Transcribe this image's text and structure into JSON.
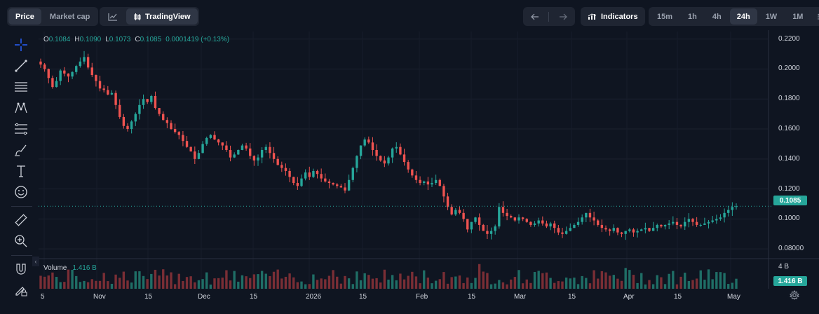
{
  "toolbar": {
    "view_tabs": [
      {
        "label": "Price",
        "active": true
      },
      {
        "label": "Market cap",
        "active": false
      }
    ],
    "tradingview_label": "TradingView",
    "indicators_label": "Indicators",
    "intervals": [
      {
        "label": "15m",
        "active": false
      },
      {
        "label": "1h",
        "active": false
      },
      {
        "label": "4h",
        "active": false
      },
      {
        "label": "24h",
        "active": true
      },
      {
        "label": "1W",
        "active": false
      },
      {
        "label": "1M",
        "active": false
      }
    ]
  },
  "ohlc": {
    "o_key": "O",
    "o": "0.1084",
    "h_key": "H",
    "h": "0.1090",
    "l_key": "L",
    "l": "0.1073",
    "c_key": "C",
    "c": "0.1085",
    "change": "0.0001419 (+0.13%)"
  },
  "last_price": "0.1085",
  "volume": {
    "label": "Volume",
    "value": "1.416 B",
    "tag": "1.416 B",
    "axis_label": "4 B"
  },
  "colors": {
    "up": "#26a69a",
    "down": "#ef5350",
    "vol_up": "#1f6e66",
    "vol_down": "#7a2e35"
  },
  "chart_data": {
    "type": "candlestick",
    "y_axis_ticks": [
      "0.2200",
      "0.2000",
      "0.1800",
      "0.1600",
      "0.1400",
      "0.1200",
      "0.1000",
      "0.08000"
    ],
    "x_axis_ticks": [
      "5",
      "Nov",
      "15",
      "Dec",
      "15",
      "2026",
      "15",
      "Feb",
      "15",
      "Mar",
      "15",
      "Apr",
      "15",
      "May"
    ],
    "ylim": [
      0.074,
      0.225
    ],
    "close_series": [
      0.203,
      0.2,
      0.194,
      0.188,
      0.192,
      0.199,
      0.197,
      0.195,
      0.198,
      0.202,
      0.205,
      0.208,
      0.201,
      0.196,
      0.192,
      0.187,
      0.186,
      0.183,
      0.184,
      0.176,
      0.168,
      0.162,
      0.16,
      0.165,
      0.17,
      0.176,
      0.18,
      0.178,
      0.182,
      0.174,
      0.17,
      0.166,
      0.164,
      0.16,
      0.158,
      0.156,
      0.152,
      0.148,
      0.145,
      0.14,
      0.144,
      0.15,
      0.154,
      0.156,
      0.153,
      0.151,
      0.149,
      0.146,
      0.141,
      0.143,
      0.146,
      0.149,
      0.147,
      0.142,
      0.139,
      0.141,
      0.146,
      0.148,
      0.144,
      0.14,
      0.136,
      0.134,
      0.132,
      0.128,
      0.124,
      0.122,
      0.127,
      0.131,
      0.128,
      0.132,
      0.13,
      0.127,
      0.125,
      0.124,
      0.123,
      0.122,
      0.121,
      0.119,
      0.126,
      0.134,
      0.142,
      0.149,
      0.153,
      0.151,
      0.146,
      0.142,
      0.139,
      0.137,
      0.141,
      0.147,
      0.148,
      0.143,
      0.138,
      0.133,
      0.129,
      0.126,
      0.124,
      0.125,
      0.123,
      0.124,
      0.126,
      0.122,
      0.115,
      0.108,
      0.103,
      0.106,
      0.104,
      0.1,
      0.093,
      0.098,
      0.101,
      0.096,
      0.092,
      0.09,
      0.092,
      0.095,
      0.108,
      0.104,
      0.102,
      0.101,
      0.099,
      0.101,
      0.1,
      0.098,
      0.096,
      0.097,
      0.099,
      0.097,
      0.095,
      0.097,
      0.094,
      0.091,
      0.09,
      0.092,
      0.094,
      0.096,
      0.098,
      0.101,
      0.104,
      0.101,
      0.099,
      0.096,
      0.094,
      0.093,
      0.092,
      0.094,
      0.091,
      0.09,
      0.092,
      0.093,
      0.091,
      0.092,
      0.093,
      0.094,
      0.092,
      0.094,
      0.096,
      0.095,
      0.096,
      0.097,
      0.098,
      0.096,
      0.095,
      0.098,
      0.1,
      0.098,
      0.096,
      0.096,
      0.097,
      0.098,
      0.099,
      0.1,
      0.101,
      0.104,
      0.106,
      0.108,
      0.1085
    ],
    "last_price": 0.1085
  }
}
